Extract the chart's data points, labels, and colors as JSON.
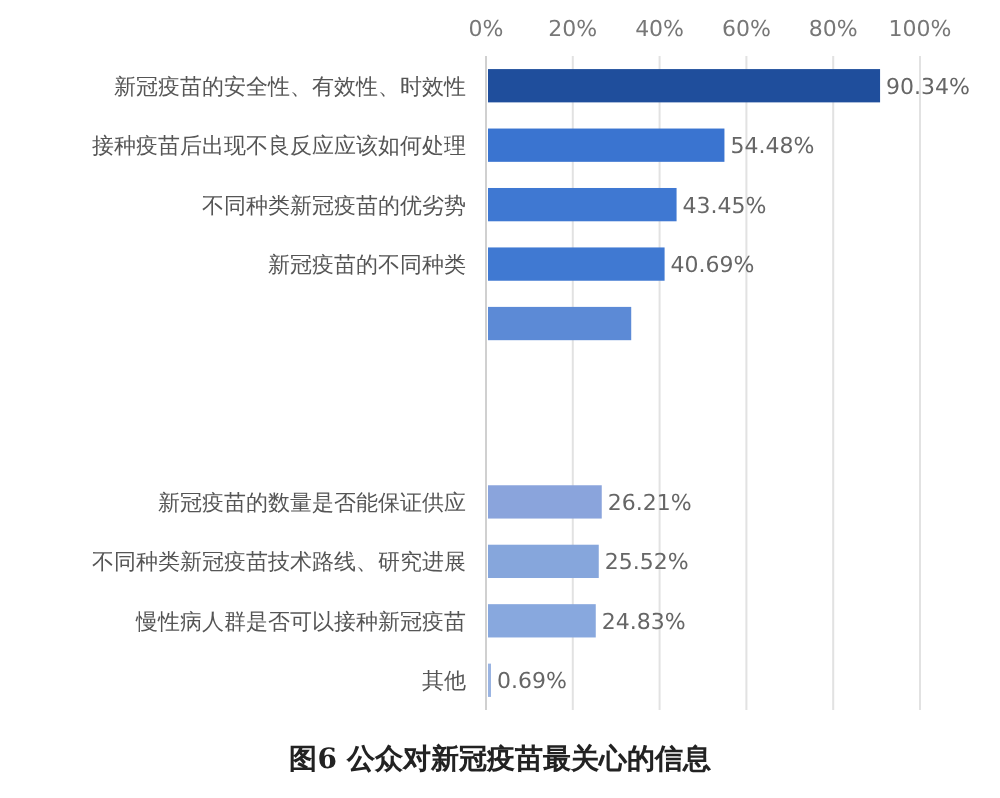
{
  "chart_data": {
    "type": "bar",
    "orientation": "horizontal",
    "title": "图6 公众对新冠疫苗最关心的信息",
    "categories": [
      "新冠疫苗的安全性、有效性、时效性",
      "接种疫苗后出现不良反应应该如何处理",
      "不同种类新冠疫苗的优劣势",
      "新冠疫苗的不同种类",
      null,
      null,
      null,
      "新冠疫苗的数量是否能保证供应",
      "不同种类新冠疫苗技术路线、研究进展",
      "慢性病人群是否可以接种新冠疫苗",
      "其他"
    ],
    "values": [
      90.34,
      54.48,
      43.45,
      40.69,
      33,
      null,
      null,
      26.21,
      25.52,
      24.83,
      0.69
    ],
    "value_labels": [
      "90.34%",
      "54.48%",
      "43.45%",
      "40.69%",
      null,
      null,
      null,
      "26.21%",
      "25.52%",
      "24.83%",
      "0.69%"
    ],
    "colors": [
      "#1f4e9c",
      "#3a74d0",
      "#3f78d2",
      "#4079d2",
      "#5c8ad6",
      null,
      null,
      "#8aa4dc",
      "#86a6dc",
      "#88a8de",
      "#9ab4e2"
    ],
    "xlim": [
      0,
      100
    ],
    "xticks": [
      {
        "value": 0,
        "label": "0%"
      },
      {
        "value": 20,
        "label": "20%"
      },
      {
        "value": 40,
        "label": "40%"
      },
      {
        "value": 60,
        "label": "60%"
      },
      {
        "value": 80,
        "label": "80%"
      },
      {
        "value": 100,
        "label": "100%"
      }
    ],
    "grid": "x"
  }
}
